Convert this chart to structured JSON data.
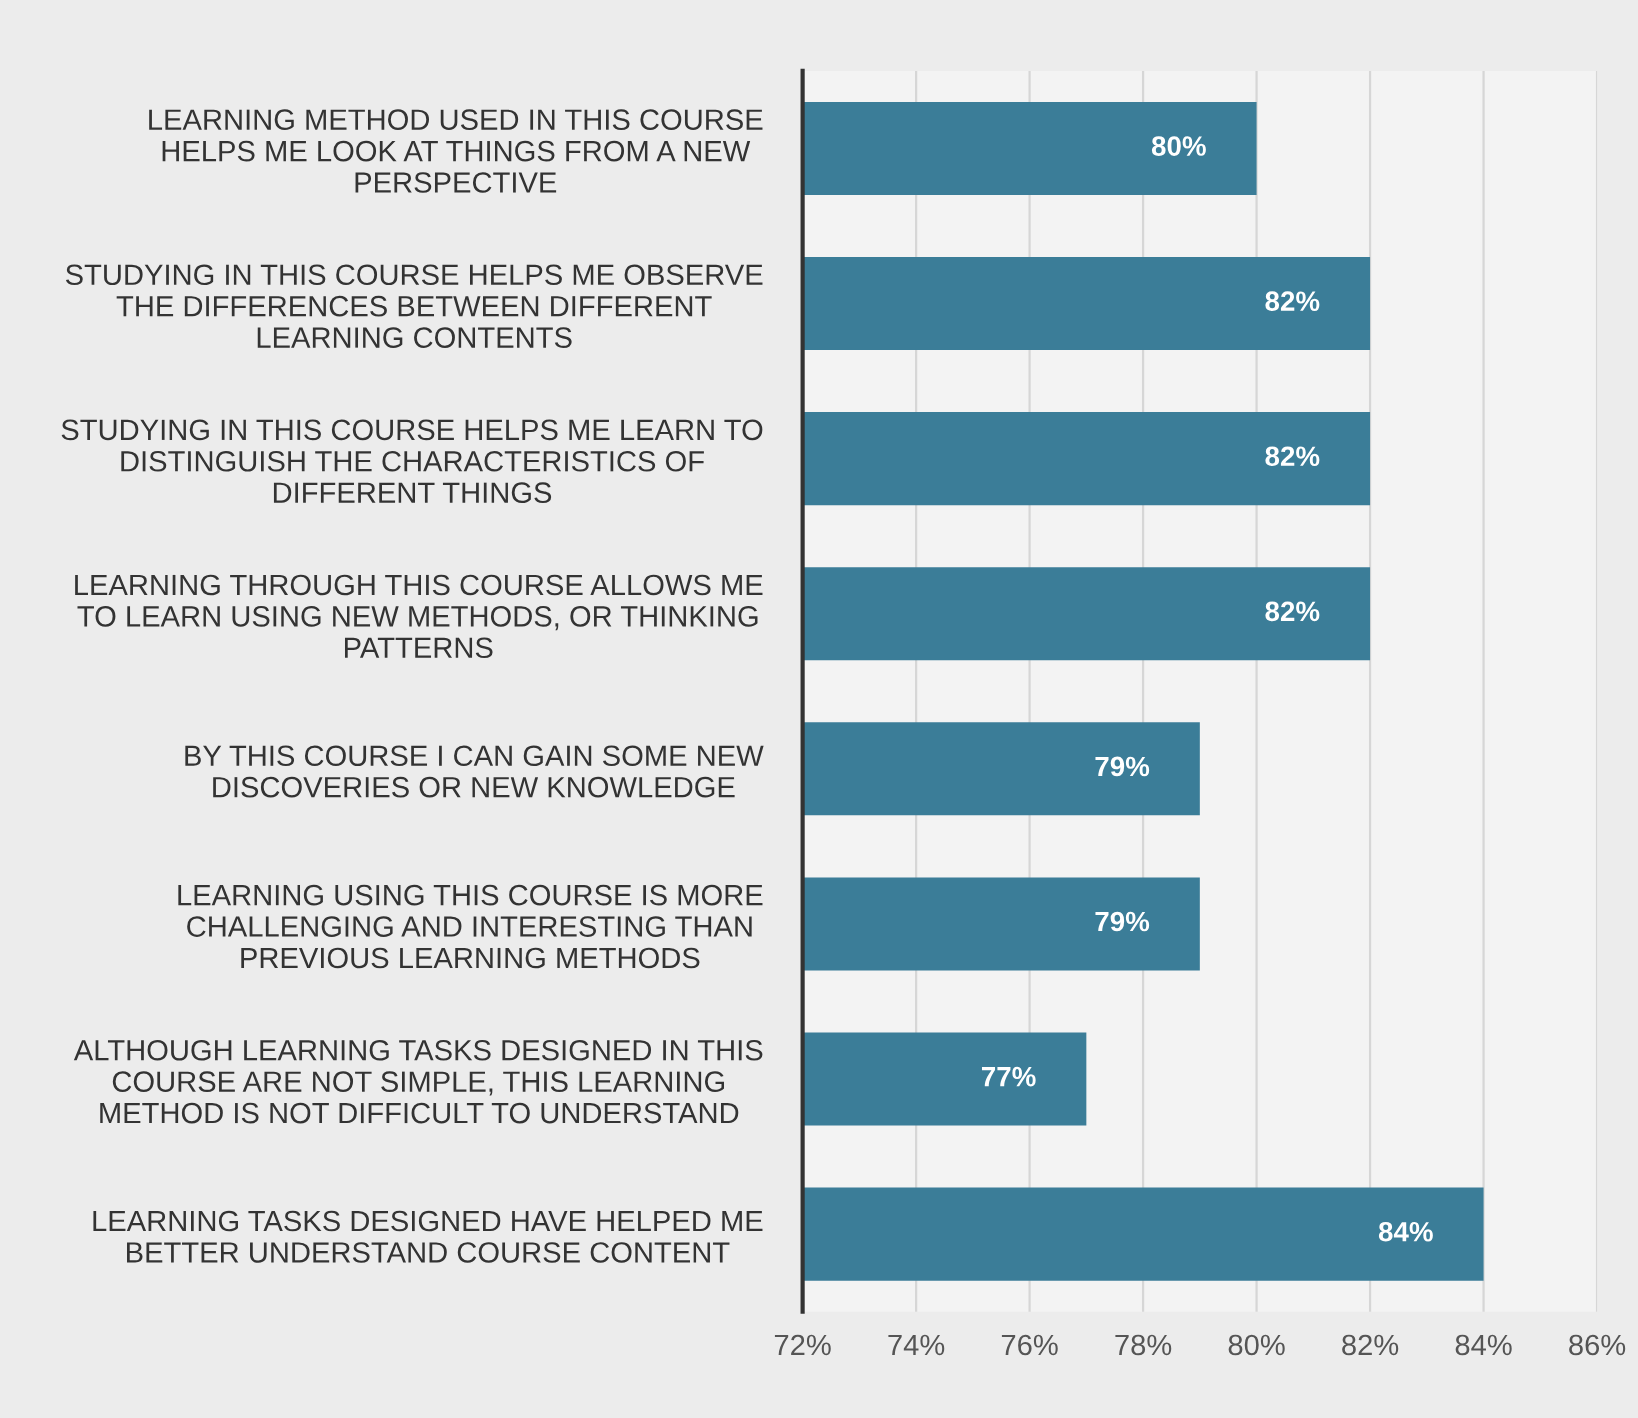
{
  "chart_data": {
    "type": "bar",
    "orientation": "horizontal",
    "categories": [
      "LEARNING METHOD USED IN THIS COURSE\nHELPS ME LOOK AT THINGS FROM A NEW\nPERSPECTIVE",
      "STUDYING IN THIS COURSE HELPS ME OBSERVE\nTHE DIFFERENCES BETWEEN DIFFERENT\nLEARNING CONTENTS",
      "STUDYING IN THIS COURSE HELPS ME LEARN TO\nDISTINGUISH THE CHARACTERISTICS OF\nDIFFERENT THINGS",
      "LEARNING THROUGH THIS COURSE ALLOWS ME\nTO LEARN USING NEW METHODS, OR THINKING\nPATTERNS",
      "BY THIS COURSE I CAN GAIN SOME NEW\nDISCOVERIES OR NEW KNOWLEDGE",
      "LEARNING USING THIS COURSE IS MORE\nCHALLENGING AND INTERESTING THAN\nPREVIOUS LEARNING METHODS",
      "ALTHOUGH LEARNING TASKS DESIGNED IN THIS\nCOURSE ARE NOT SIMPLE, THIS LEARNING\nMETHOD IS NOT DIFFICULT TO UNDERSTAND",
      "LEARNING TASKS DESIGNED HAVE HELPED ME\nBETTER UNDERSTAND COURSE CONTENT"
    ],
    "values": [
      80,
      82,
      82,
      82,
      79,
      79,
      77,
      84
    ],
    "value_labels": [
      "80%",
      "82%",
      "82%",
      "82%",
      "79%",
      "79%",
      "77%",
      "84%"
    ],
    "color": "#3b7d98",
    "xlim": [
      72,
      86
    ],
    "xticks": [
      {
        "value": 72,
        "label": "72%"
      },
      {
        "value": 74,
        "label": "74%"
      },
      {
        "value": 76,
        "label": "76%"
      },
      {
        "value": 78,
        "label": "78%"
      },
      {
        "value": 80,
        "label": "80%"
      },
      {
        "value": 82,
        "label": "82%"
      },
      {
        "value": 84,
        "label": "84%"
      },
      {
        "value": 86,
        "label": "86%"
      }
    ],
    "grid": "x"
  }
}
